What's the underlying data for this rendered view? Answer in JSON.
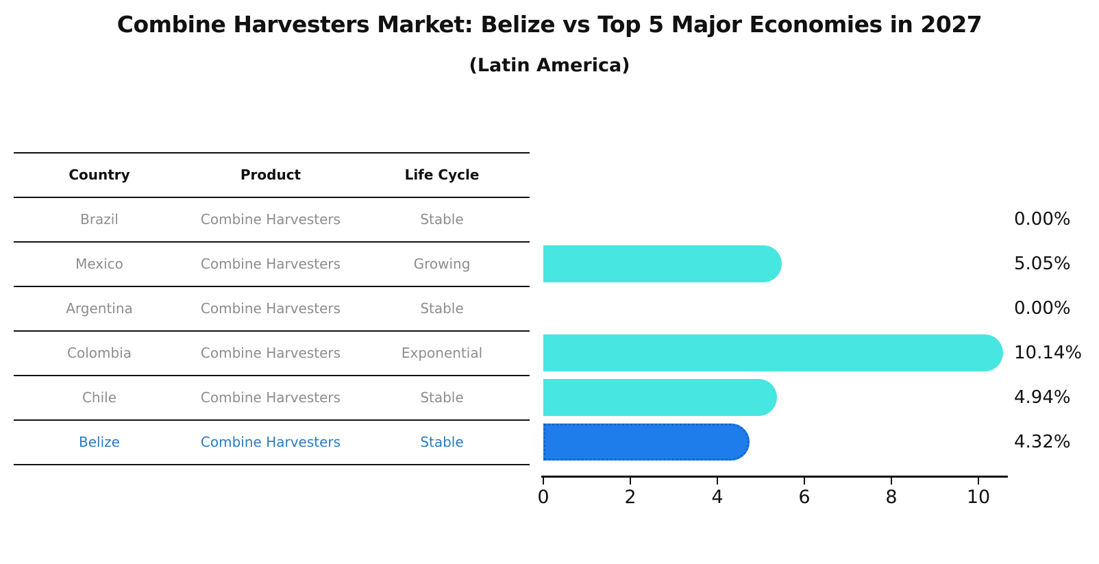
{
  "title": "Combine Harvesters Market: Belize vs Top 5 Major Economies in 2027",
  "subtitle": "(Latin America)",
  "table": {
    "columns": [
      "Country",
      "Product",
      "Life Cycle"
    ],
    "rows": [
      {
        "country": "Brazil",
        "product": "Combine Harvesters",
        "life_cycle": "Stable",
        "highlighted": false
      },
      {
        "country": "Mexico",
        "product": "Combine Harvesters",
        "life_cycle": "Growing",
        "highlighted": false
      },
      {
        "country": "Argentina",
        "product": "Combine Harvesters",
        "life_cycle": "Stable",
        "highlighted": false
      },
      {
        "country": "Colombia",
        "product": "Combine Harvesters",
        "life_cycle": "Exponential",
        "highlighted": false
      },
      {
        "country": "Chile",
        "product": "Combine Harvesters",
        "life_cycle": "Stable",
        "highlighted": false
      },
      {
        "country": "Belize",
        "product": "Combine Harvesters",
        "life_cycle": "Stable",
        "highlighted": true
      }
    ]
  },
  "chart_data": {
    "type": "bar",
    "orientation": "horizontal",
    "title": "Combine Harvesters Market: Belize vs Top 5 Major Economies in 2027",
    "subtitle": "(Latin America)",
    "categories": [
      "Brazil",
      "Mexico",
      "Argentina",
      "Colombia",
      "Chile",
      "Belize"
    ],
    "values": [
      0.0,
      5.05,
      0.0,
      10.14,
      4.94,
      4.32
    ],
    "value_labels": [
      "0.00%",
      "5.05%",
      "0.00%",
      "10.14%",
      "4.94%",
      "4.32%"
    ],
    "value_unit": "%",
    "highlight_category": "Belize",
    "xlabel": "",
    "ylabel": "",
    "xlim": [
      0,
      10.7
    ],
    "x_ticks": [
      0,
      2,
      4,
      6,
      8,
      10
    ],
    "grid": false,
    "legend": false,
    "colors": {
      "bar_default": "#47e6e0",
      "bar_highlight": "#1f7ceb",
      "bar_highlight_border": "#1564d2",
      "row_text": "#8d8d8d",
      "highlight_text": "#2b7ac1",
      "header_text": "#111111"
    }
  }
}
